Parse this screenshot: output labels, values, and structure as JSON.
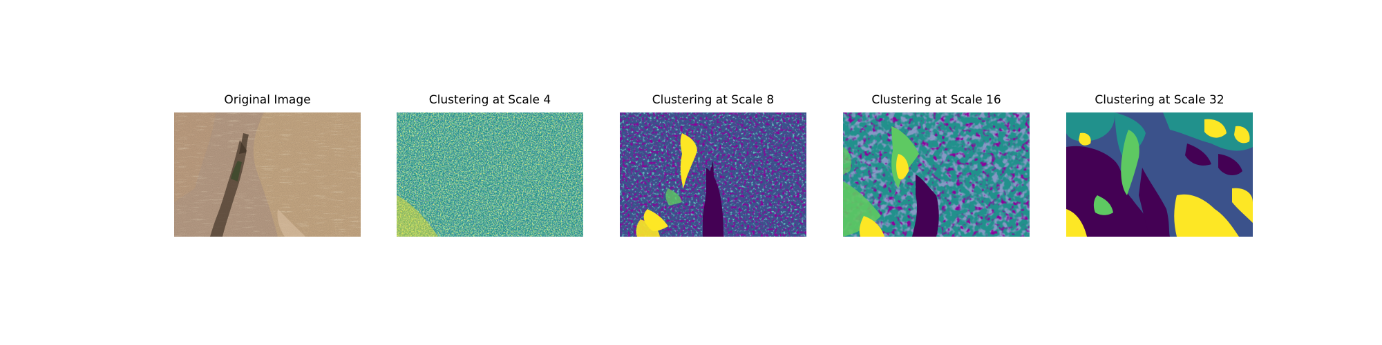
{
  "figure": {
    "panels": [
      {
        "title": "Original Image",
        "kind": "photo-aerial-terrain"
      },
      {
        "title": "Clustering at Scale 4",
        "kind": "cluster-map"
      },
      {
        "title": "Clustering at Scale 8",
        "kind": "cluster-map"
      },
      {
        "title": "Clustering at Scale 16",
        "kind": "cluster-map"
      },
      {
        "title": "Clustering at Scale 32",
        "kind": "cluster-map"
      }
    ],
    "colors": {
      "viridis_dark": "#440154",
      "viridis_blue": "#3b528b",
      "viridis_teal": "#21918c",
      "viridis_green": "#5ec962",
      "viridis_yellow": "#fde725",
      "soil": "#b89c86",
      "dry_grass": "#c9aa84",
      "shadow": "#4a3a2c"
    }
  }
}
